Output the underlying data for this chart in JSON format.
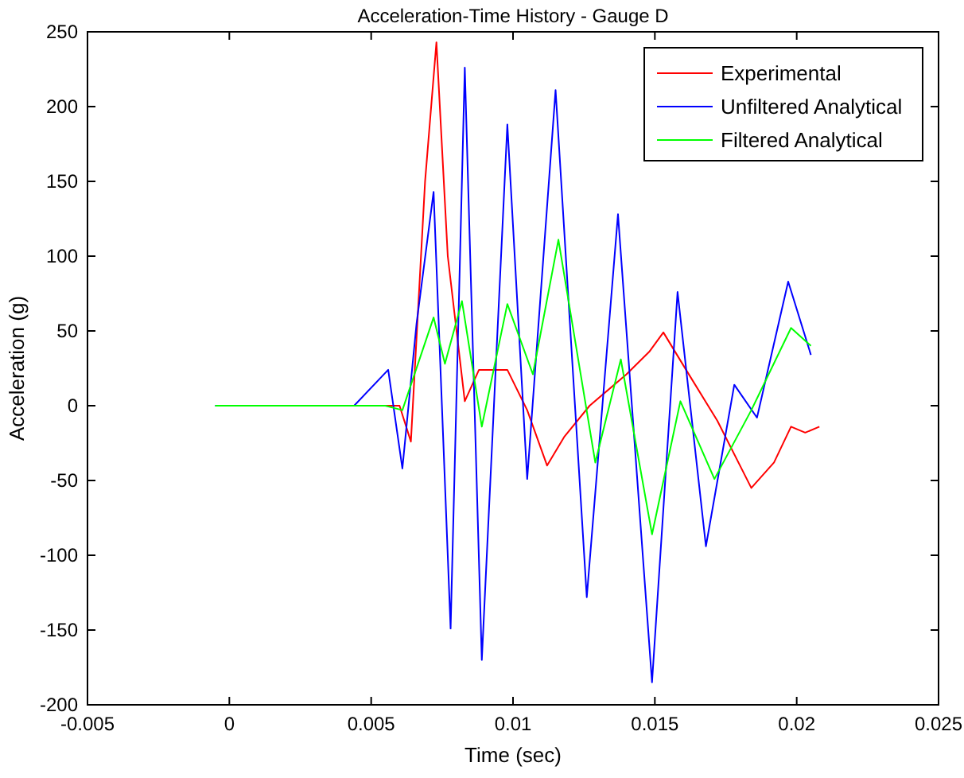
{
  "chart_data": {
    "type": "line",
    "title": "Acceleration-Time History - Gauge D",
    "xlabel": "Time (sec)",
    "ylabel": "Acceleration (g)",
    "xlim": [
      -0.005,
      0.025
    ],
    "xticks": [
      -0.005,
      0,
      0.005,
      0.01,
      0.015,
      0.02,
      0.025
    ],
    "ylim": [
      -200,
      250
    ],
    "yticks": [
      -200,
      -150,
      -100,
      -50,
      0,
      50,
      100,
      150,
      200,
      250
    ],
    "grid": false,
    "legend": "top right",
    "line_style": "solid",
    "marker": "none",
    "series": [
      {
        "name": "Experimental",
        "color": "#ff0000",
        "x": [
          -0.0003,
          0.006,
          0.0064,
          0.0069,
          0.0073,
          0.0077,
          0.0083,
          0.0088,
          0.0098,
          0.0105,
          0.0112,
          0.0118,
          0.0127,
          0.014,
          0.0148,
          0.0153,
          0.0161,
          0.0172,
          0.0184,
          0.0192,
          0.0198,
          0.0203,
          0.0208
        ],
        "values": [
          0,
          0,
          -24,
          150,
          243,
          100,
          3,
          24,
          24,
          -3,
          -40,
          -21,
          0,
          21,
          36,
          49,
          24,
          -10,
          -55,
          -38,
          -14,
          -18,
          -14
        ]
      },
      {
        "name": "Unfiltered Analytical",
        "color": "#0000ff",
        "x": [
          -0.0005,
          0.0044,
          0.0056,
          0.0061,
          0.0066,
          0.0072,
          0.0078,
          0.0083,
          0.0089,
          0.0098,
          0.0105,
          0.0115,
          0.0126,
          0.0137,
          0.0149,
          0.0158,
          0.0168,
          0.0178,
          0.0186,
          0.0197,
          0.0205
        ],
        "values": [
          0,
          0,
          24,
          -42,
          55,
          143,
          -149,
          226,
          -170,
          188,
          -49,
          211,
          -128,
          128,
          -185,
          76,
          -94,
          14,
          -8,
          83,
          34
        ]
      },
      {
        "name": "Filtered Analytical",
        "color": "#00ff00",
        "x": [
          -0.0005,
          0.005,
          0.0055,
          0.0061,
          0.0072,
          0.0076,
          0.0082,
          0.0089,
          0.0098,
          0.0107,
          0.0116,
          0.0129,
          0.0138,
          0.0149,
          0.0159,
          0.0171,
          0.0184,
          0.0198,
          0.0205
        ],
        "values": [
          0,
          0,
          0,
          -3,
          59,
          28,
          70,
          -14,
          68,
          21,
          111,
          -38,
          31,
          -86,
          3,
          -49,
          -3,
          52,
          40
        ]
      }
    ]
  }
}
